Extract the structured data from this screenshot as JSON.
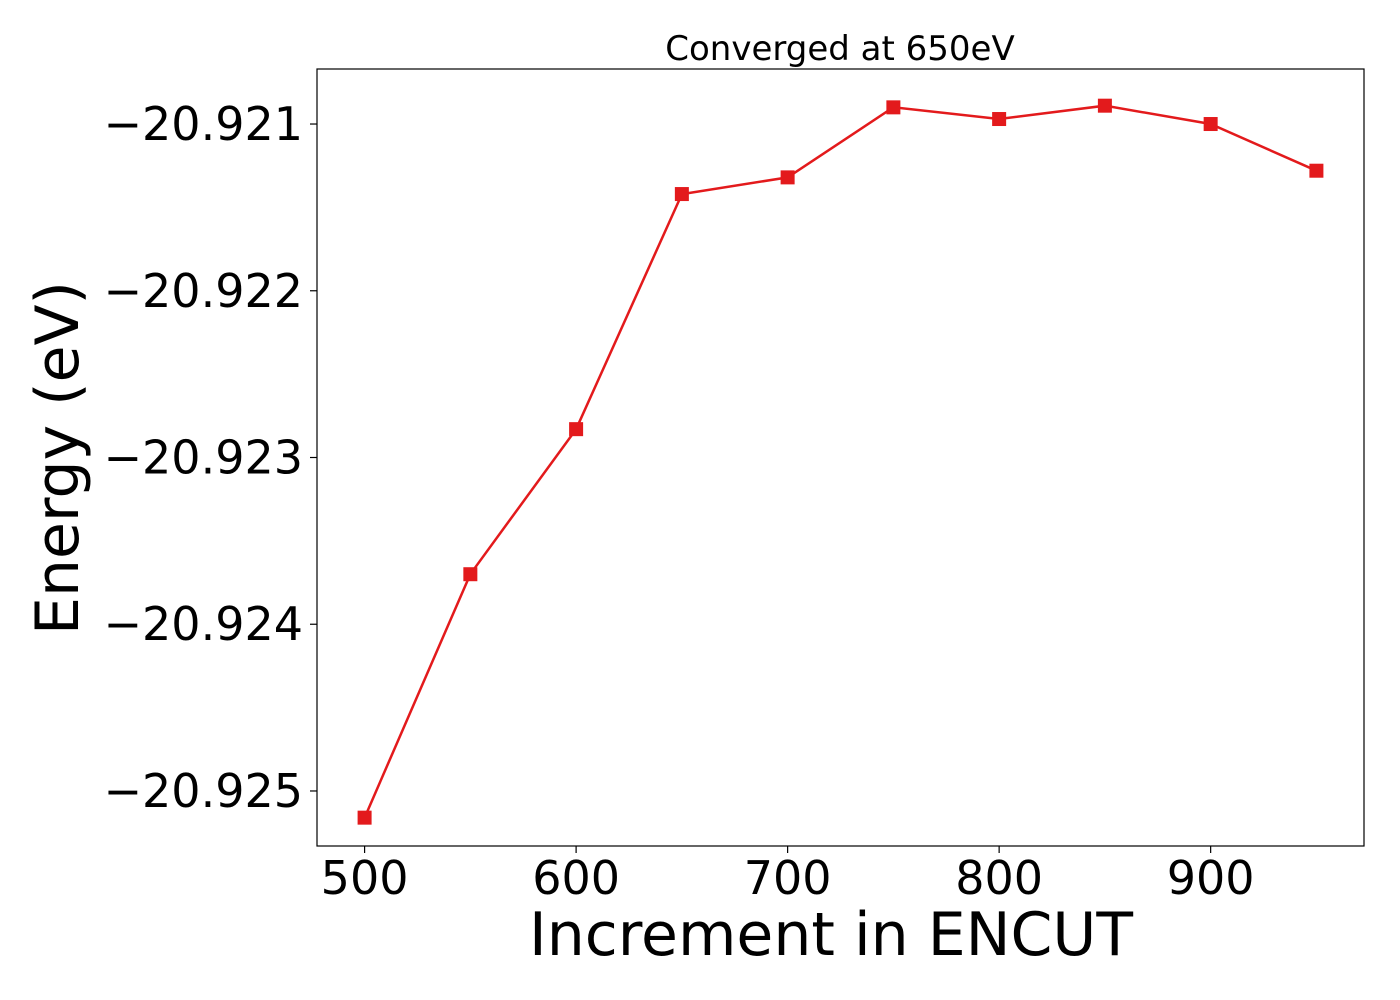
{
  "chart_data": {
    "type": "line",
    "title": "Converged at 650eV",
    "xlabel": "Increment in ENCUT",
    "ylabel": "Energy (eV)",
    "x": [
      500,
      550,
      600,
      650,
      700,
      750,
      800,
      850,
      900,
      950
    ],
    "series": [
      {
        "values": [
          -20.92516,
          -20.9237,
          -20.92283,
          -20.92142,
          -20.92132,
          -20.9209,
          -20.92097,
          -20.92089,
          -20.921,
          -20.92128
        ],
        "color": "#e31a1c",
        "marker": "square"
      }
    ],
    "xlim": [
      477.5,
      972.5
    ],
    "ylim": [
      -20.92533,
      -20.92067
    ],
    "xticks": [
      500,
      600,
      700,
      800,
      900
    ],
    "xtick_labels": [
      "500",
      "600",
      "700",
      "800",
      "900"
    ],
    "yticks": [
      -20.921,
      -20.922,
      -20.923,
      -20.924,
      -20.925
    ],
    "ytick_labels": [
      "−20.921",
      "−20.922",
      "−20.923",
      "−20.924",
      "−20.925"
    ],
    "grid": false,
    "legend": "none"
  }
}
